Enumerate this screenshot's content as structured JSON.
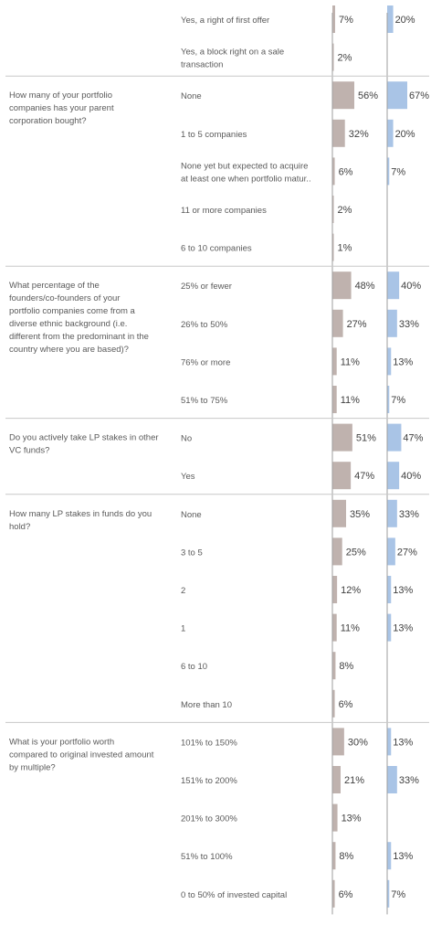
{
  "colors": {
    "series1": "#bfb2ae",
    "series2": "#a9c4e6",
    "separator": "#c8c8c8",
    "axis": "#9e9e9e"
  },
  "chart_data": {
    "type": "bar",
    "orientation": "horizontal",
    "value_unit": "%",
    "series_count": 2,
    "groups": [
      {
        "question_lines": [],
        "rows": [
          {
            "answer_lines": [
              "Yes, a right of first offer"
            ],
            "values": [
              7,
              20
            ]
          },
          {
            "answer_lines": [
              "Yes, a block right on a sale",
              "transaction"
            ],
            "values": [
              2,
              null
            ]
          }
        ]
      },
      {
        "question_lines": [
          "How many of your portfolio",
          "companies has your parent",
          "corporation bought?"
        ],
        "rows": [
          {
            "answer_lines": [
              "None"
            ],
            "values": [
              56,
              67
            ]
          },
          {
            "answer_lines": [
              "1 to 5 companies"
            ],
            "values": [
              32,
              20
            ]
          },
          {
            "answer_lines": [
              "None yet but expected to acquire",
              "at least one when portfolio matur.."
            ],
            "values": [
              6,
              7
            ]
          },
          {
            "answer_lines": [
              "11 or more companies"
            ],
            "values": [
              2,
              null
            ]
          },
          {
            "answer_lines": [
              "6 to 10 companies"
            ],
            "values": [
              1,
              null
            ]
          }
        ]
      },
      {
        "question_lines": [
          "What percentage of the",
          "founders/co-founders of your",
          "portfolio companies come from a",
          "diverse ethnic background (i.e.",
          "different from the predominant in the",
          "country where you are based)?"
        ],
        "rows": [
          {
            "answer_lines": [
              "25% or fewer"
            ],
            "values": [
              48,
              40
            ]
          },
          {
            "answer_lines": [
              "26% to 50%"
            ],
            "values": [
              27,
              33
            ]
          },
          {
            "answer_lines": [
              "76% or more"
            ],
            "values": [
              11,
              13
            ]
          },
          {
            "answer_lines": [
              "51% to 75%"
            ],
            "values": [
              11,
              7
            ]
          }
        ]
      },
      {
        "question_lines": [
          "Do you actively take LP stakes in other",
          "VC funds?"
        ],
        "rows": [
          {
            "answer_lines": [
              "No"
            ],
            "values": [
              51,
              47
            ]
          },
          {
            "answer_lines": [
              "Yes"
            ],
            "values": [
              47,
              40
            ]
          }
        ]
      },
      {
        "question_lines": [
          "How many LP stakes in funds do you",
          "hold?"
        ],
        "rows": [
          {
            "answer_lines": [
              "None"
            ],
            "values": [
              35,
              33
            ]
          },
          {
            "answer_lines": [
              "3 to 5"
            ],
            "values": [
              25,
              27
            ]
          },
          {
            "answer_lines": [
              "2"
            ],
            "values": [
              12,
              13
            ]
          },
          {
            "answer_lines": [
              "1"
            ],
            "values": [
              11,
              13
            ]
          },
          {
            "answer_lines": [
              "6 to 10"
            ],
            "values": [
              8,
              null
            ]
          },
          {
            "answer_lines": [
              "More than 10"
            ],
            "values": [
              6,
              null
            ]
          }
        ]
      },
      {
        "question_lines": [
          "What is your portfolio worth",
          "compared to original invested amount",
          "by multiple?"
        ],
        "rows": [
          {
            "answer_lines": [
              "101% to 150%"
            ],
            "values": [
              30,
              13
            ]
          },
          {
            "answer_lines": [
              "151% to 200%"
            ],
            "values": [
              21,
              33
            ]
          },
          {
            "answer_lines": [
              "201% to 300%"
            ],
            "values": [
              13,
              null
            ]
          },
          {
            "answer_lines": [
              "51% to 100%"
            ],
            "values": [
              8,
              13
            ]
          },
          {
            "answer_lines": [
              "0 to 50% of invested capital"
            ],
            "values": [
              6,
              7
            ]
          }
        ]
      }
    ]
  }
}
